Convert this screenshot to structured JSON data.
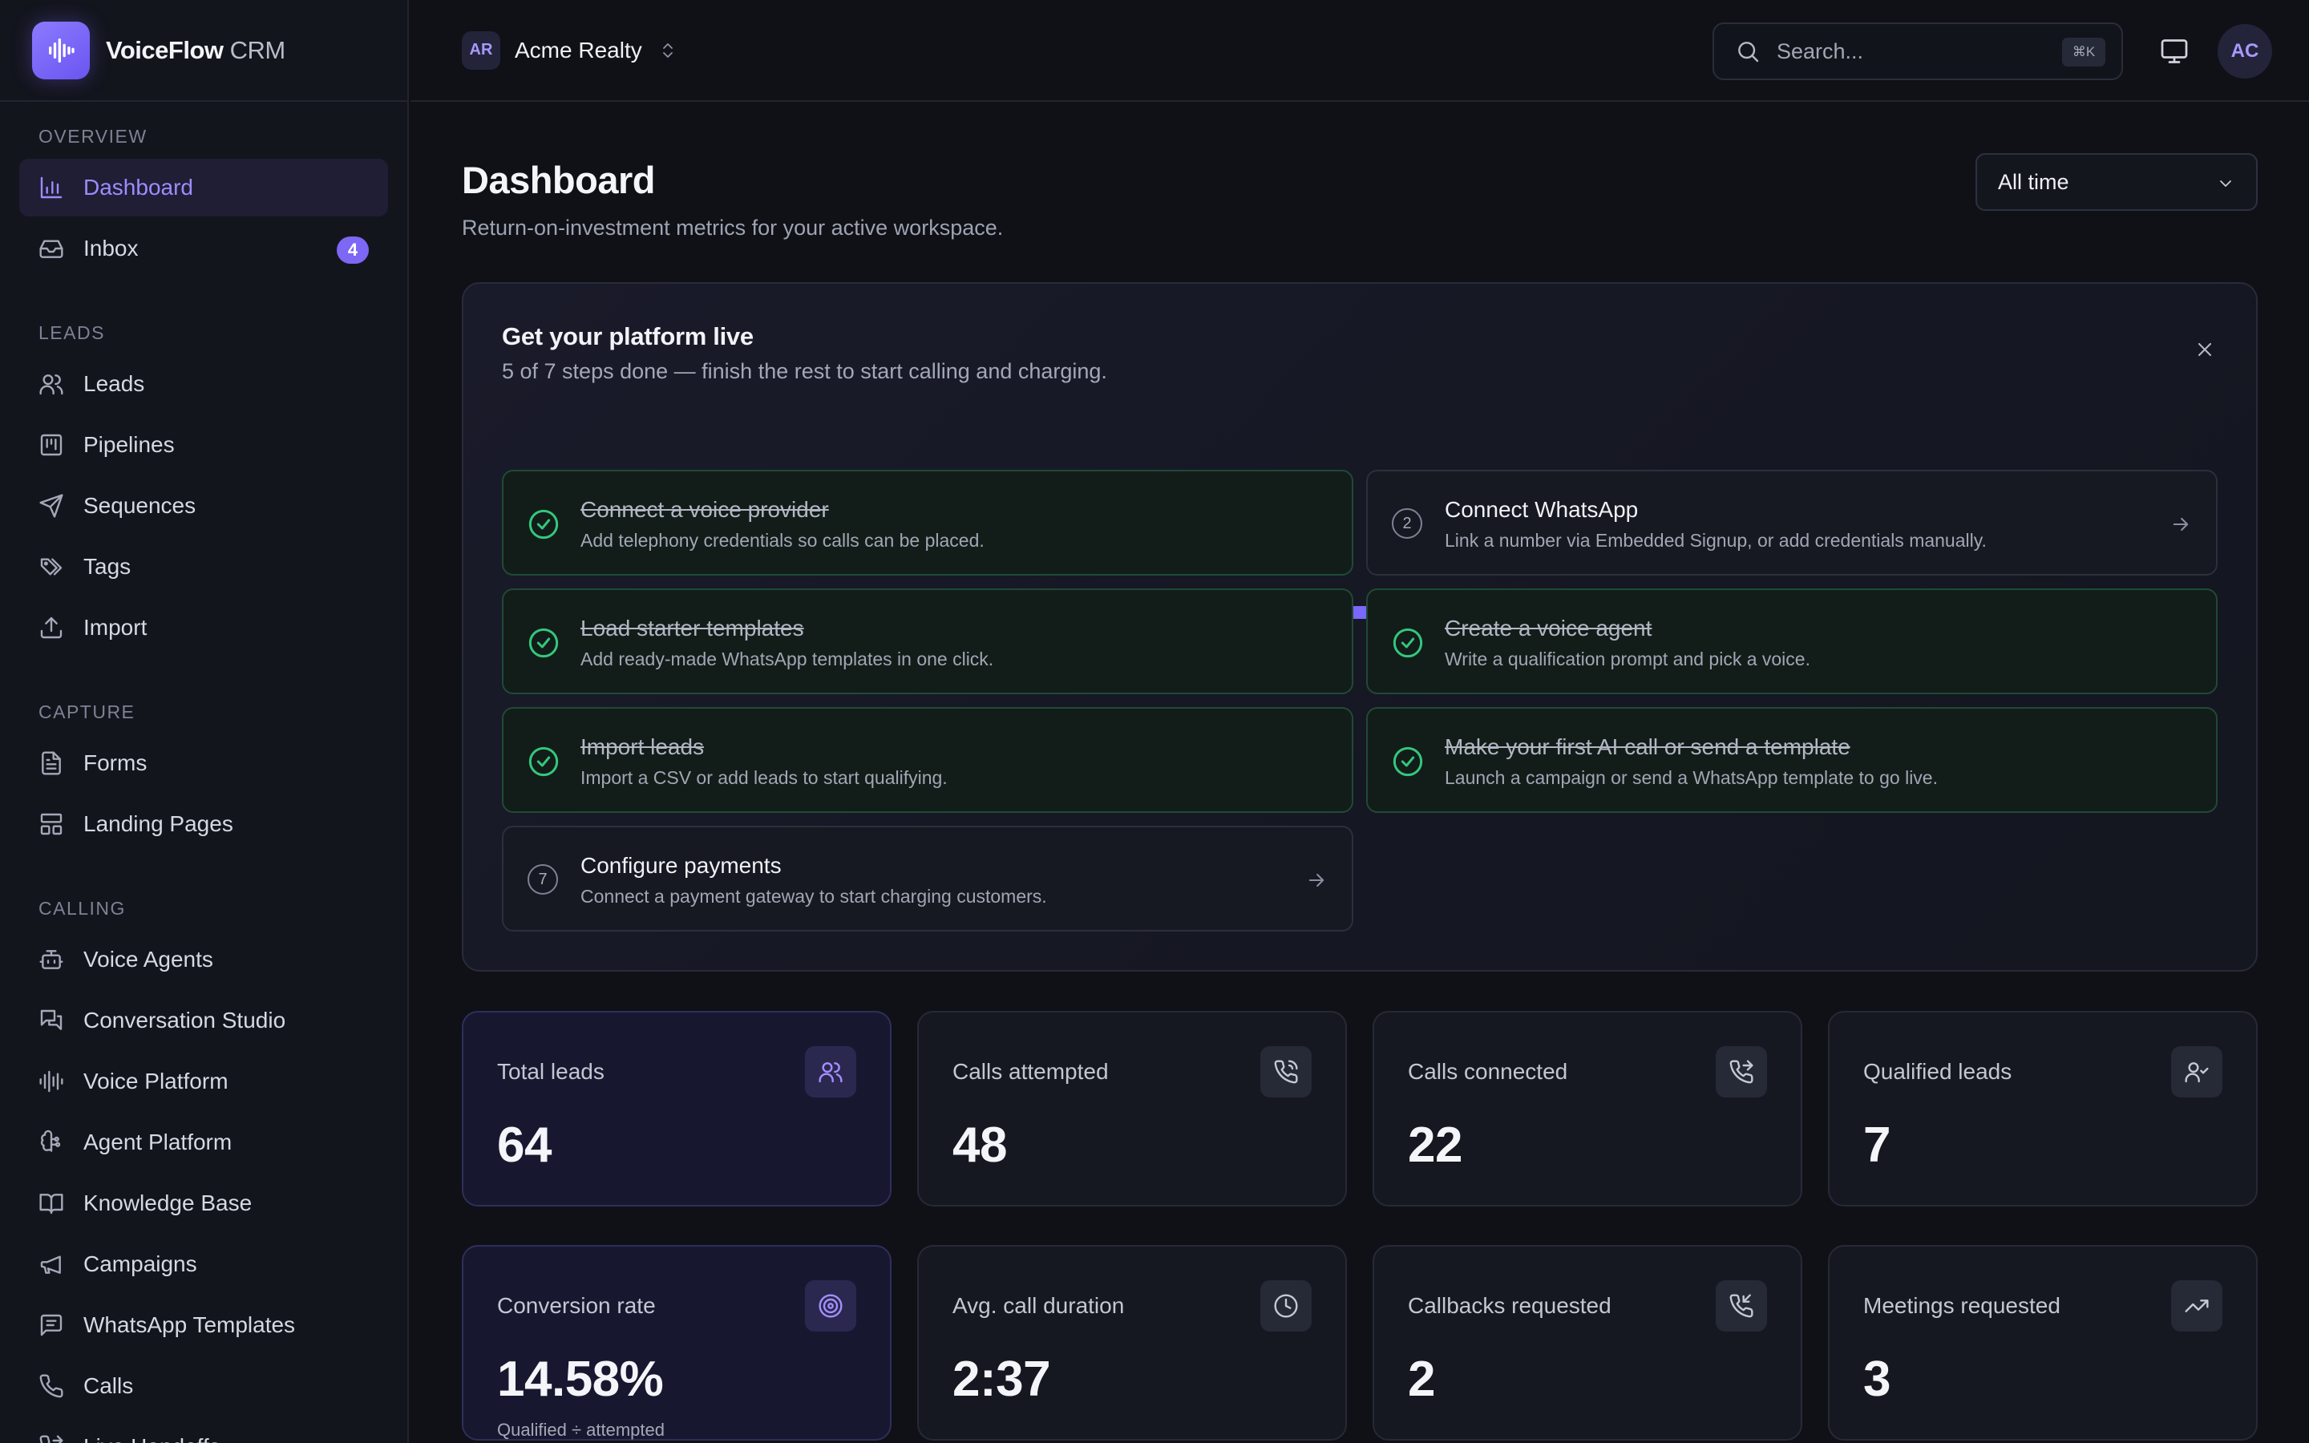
{
  "app": {
    "name": "VoiceFlow",
    "name_suffix": "CRM"
  },
  "workspace": {
    "initials": "AR",
    "name": "Acme Realty"
  },
  "search": {
    "placeholder": "Search...",
    "shortcut": "⌘K"
  },
  "user": {
    "initials": "AC"
  },
  "sidebar": {
    "sections": [
      {
        "title": "OVERVIEW",
        "items": [
          {
            "label": "Dashboard",
            "icon": "bar-chart-icon",
            "active": true
          },
          {
            "label": "Inbox",
            "icon": "inbox-icon",
            "badge": "4"
          }
        ]
      },
      {
        "title": "LEADS",
        "items": [
          {
            "label": "Leads",
            "icon": "users-icon"
          },
          {
            "label": "Pipelines",
            "icon": "kanban-icon"
          },
          {
            "label": "Sequences",
            "icon": "send-icon"
          },
          {
            "label": "Tags",
            "icon": "tags-icon"
          },
          {
            "label": "Import",
            "icon": "upload-icon"
          }
        ]
      },
      {
        "title": "CAPTURE",
        "items": [
          {
            "label": "Forms",
            "icon": "file-text-icon"
          },
          {
            "label": "Landing Pages",
            "icon": "layout-icon"
          }
        ]
      },
      {
        "title": "CALLING",
        "items": [
          {
            "label": "Voice Agents",
            "icon": "bot-icon"
          },
          {
            "label": "Conversation Studio",
            "icon": "messages-icon"
          },
          {
            "label": "Voice Platform",
            "icon": "audio-lines-icon"
          },
          {
            "label": "Agent Platform",
            "icon": "brain-icon"
          },
          {
            "label": "Knowledge Base",
            "icon": "book-icon"
          },
          {
            "label": "Campaigns",
            "icon": "megaphone-icon"
          },
          {
            "label": "WhatsApp Templates",
            "icon": "message-square-icon"
          },
          {
            "label": "Calls",
            "icon": "phone-icon"
          },
          {
            "label": "Live Handoffs",
            "icon": "phone-forward-icon"
          }
        ]
      }
    ]
  },
  "page": {
    "title": "Dashboard",
    "subtitle": "Return-on-investment metrics for your active workspace.",
    "range": "All time"
  },
  "onboarding": {
    "title": "Get your platform live",
    "subtitle": "5 of 7 steps done — finish the rest to start calling and charging.",
    "progress": 0.714,
    "steps": [
      {
        "number": "1",
        "title": "Connect a voice provider",
        "desc": "Add telephony credentials so calls can be placed.",
        "done": true
      },
      {
        "number": "2",
        "title": "Connect WhatsApp",
        "desc": "Link a number via Embedded Signup, or add credentials manually.",
        "done": false
      },
      {
        "number": "3",
        "title": "Load starter templates",
        "desc": "Add ready-made WhatsApp templates in one click.",
        "done": true
      },
      {
        "number": "4",
        "title": "Create a voice agent",
        "desc": "Write a qualification prompt and pick a voice.",
        "done": true
      },
      {
        "number": "5",
        "title": "Import leads",
        "desc": "Import a CSV or add leads to start qualifying.",
        "done": true
      },
      {
        "number": "6",
        "title": "Make your first AI call or send a template",
        "desc": "Launch a campaign or send a WhatsApp template to go live.",
        "done": true
      },
      {
        "number": "7",
        "title": "Configure payments",
        "desc": "Connect a payment gateway to start charging customers.",
        "done": false
      }
    ]
  },
  "stats": [
    {
      "label": "Total leads",
      "value": "64",
      "icon": "users-icon",
      "accent": true
    },
    {
      "label": "Calls attempted",
      "value": "48",
      "icon": "phone-call-icon"
    },
    {
      "label": "Calls connected",
      "value": "22",
      "icon": "phone-forwarded-icon"
    },
    {
      "label": "Qualified leads",
      "value": "7",
      "icon": "user-check-icon"
    },
    {
      "label": "Conversion rate",
      "value": "14.58%",
      "icon": "target-icon",
      "accent": true,
      "note": "Qualified ÷ attempted"
    },
    {
      "label": "Avg. call duration",
      "value": "2:37",
      "icon": "clock-icon"
    },
    {
      "label": "Callbacks requested",
      "value": "2",
      "icon": "phone-incoming-icon"
    },
    {
      "label": "Meetings requested",
      "value": "3",
      "icon": "trending-up-icon"
    }
  ],
  "colors": {
    "accent": "#7d67f5",
    "success": "#34c77b",
    "background": "#0f1117"
  }
}
